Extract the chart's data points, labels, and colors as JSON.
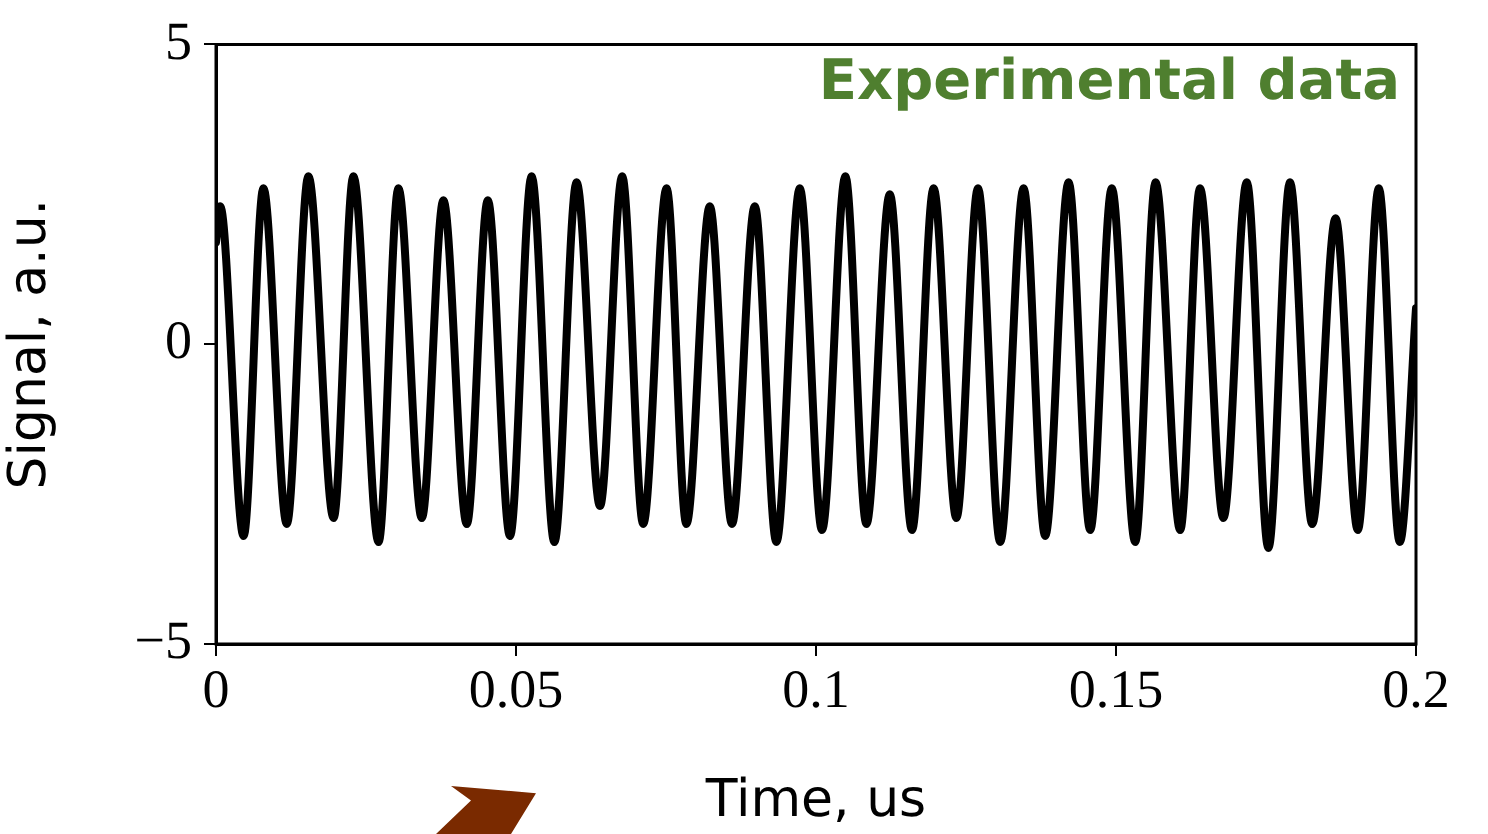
{
  "chart_data": {
    "type": "line",
    "xlabel": "Time, us",
    "ylabel": "Signal, a.u.",
    "annotations": [
      "Experimental data"
    ],
    "xlim": [
      0,
      0.2
    ],
    "xticks": [
      0,
      0.05,
      0.1,
      0.15,
      0.2
    ],
    "ylim": [
      -5,
      5
    ],
    "yticks": [
      {
        "value": -5,
        "label": "−5"
      },
      0,
      5
    ],
    "grid": false,
    "legend": false,
    "marker": "none",
    "line_style": "solid",
    "series": [
      {
        "color": "#000000",
        "x": [
          0,
          0.0007,
          0.0046,
          0.0079,
          0.0118,
          0.0154,
          0.0196,
          0.0229,
          0.0271,
          0.0304,
          0.0343,
          0.0379,
          0.0418,
          0.0453,
          0.049,
          0.0526,
          0.0564,
          0.0601,
          0.064,
          0.0677,
          0.0712,
          0.0751,
          0.0784,
          0.0823,
          0.086,
          0.0898,
          0.0934,
          0.0973,
          0.101,
          0.1049,
          0.1084,
          0.1123,
          0.116,
          0.1196,
          0.1234,
          0.127,
          0.1307,
          0.1346,
          0.1382,
          0.1421,
          0.1457,
          0.1493,
          0.1532,
          0.1566,
          0.1607,
          0.164,
          0.1679,
          0.1718,
          0.1754,
          0.179,
          0.1827,
          0.1866,
          0.1903,
          0.1938,
          0.1973,
          0.2
        ],
        "values": [
          1.7,
          2.3,
          -3.2,
          2.6,
          -3.0,
          2.8,
          -2.9,
          2.8,
          -3.3,
          2.6,
          -2.9,
          2.4,
          -3.0,
          2.4,
          -3.2,
          2.8,
          -3.3,
          2.7,
          -2.7,
          2.8,
          -3.0,
          2.6,
          -3.0,
          2.3,
          -3.0,
          2.3,
          -3.3,
          2.6,
          -3.1,
          2.8,
          -3.0,
          2.5,
          -3.1,
          2.6,
          -2.9,
          2.6,
          -3.3,
          2.6,
          -3.2,
          2.7,
          -3.1,
          2.6,
          -3.3,
          2.7,
          -3.1,
          2.6,
          -2.9,
          2.7,
          -3.4,
          2.7,
          -3.0,
          2.1,
          -3.1,
          2.6,
          -3.3,
          0.6
        ]
      }
    ]
  }
}
